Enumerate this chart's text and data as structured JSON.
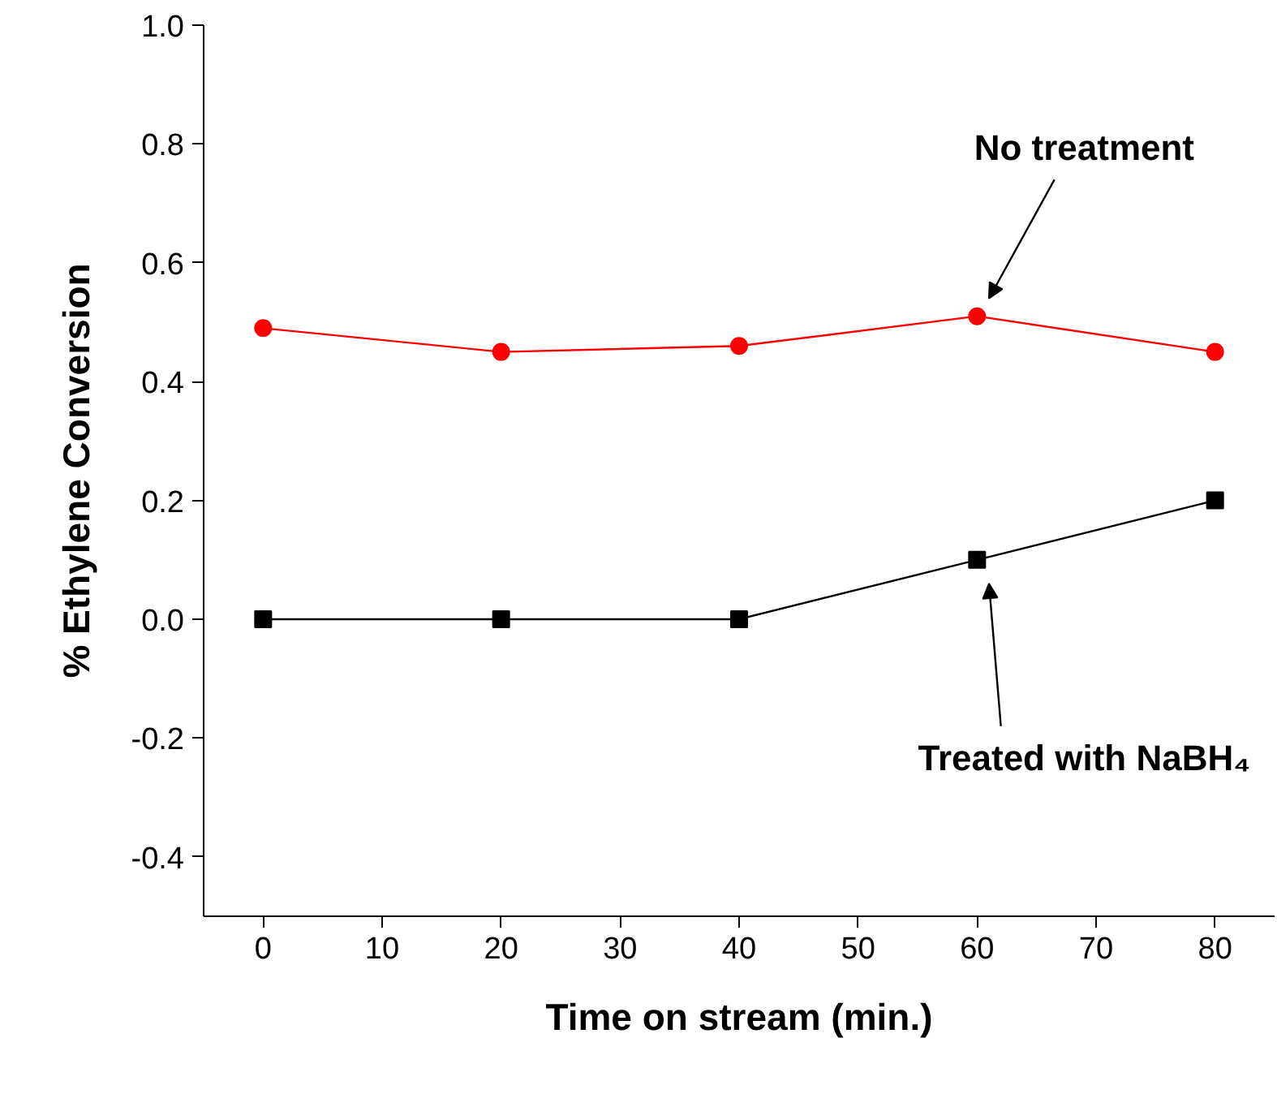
{
  "chart_data": {
    "type": "line",
    "xlabel": "Time on stream (min.)",
    "ylabel": "% Ethylene Conversion",
    "x": [
      0,
      20,
      40,
      60,
      80
    ],
    "series": [
      {
        "name": "No treatment",
        "color": "#ff0000",
        "values": [
          0.49,
          0.45,
          0.46,
          0.51,
          0.45
        ],
        "marker": "circle"
      },
      {
        "name": "Treated with NaBH₄",
        "color": "#000000",
        "values": [
          0,
          0,
          0,
          0.1,
          0.2
        ],
        "marker": "square"
      }
    ],
    "xlim": [
      -5,
      85
    ],
    "ylim": [
      -0.5,
      1.0
    ],
    "xticks": [
      0,
      10,
      20,
      30,
      40,
      50,
      60,
      70,
      80
    ],
    "yticks": [
      -0.4,
      -0.2,
      {
        "value": 0,
        "label": "0.0"
      },
      0.2,
      0.4,
      0.6,
      0.8,
      {
        "value": 1,
        "label": "1.0"
      }
    ],
    "grid": false,
    "legend": false,
    "line_style": "solid"
  }
}
